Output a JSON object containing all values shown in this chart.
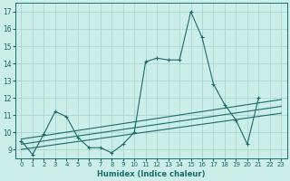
{
  "xlabel": "Humidex (Indice chaleur)",
  "xlim": [
    -0.5,
    23.5
  ],
  "ylim": [
    8.5,
    17.5
  ],
  "yticks": [
    9,
    10,
    11,
    12,
    13,
    14,
    15,
    16,
    17
  ],
  "xticks": [
    0,
    1,
    2,
    3,
    4,
    5,
    6,
    7,
    8,
    9,
    10,
    11,
    12,
    13,
    14,
    15,
    16,
    17,
    18,
    19,
    20,
    21,
    22,
    23
  ],
  "bg_color": "#cceee8",
  "grid_color": "#aad8d2",
  "line_color": "#1a6b6b",
  "main_x": [
    0,
    1,
    2,
    3,
    4,
    5,
    6,
    7,
    8,
    9,
    10,
    11,
    12,
    13,
    14,
    15,
    16,
    17,
    18,
    19,
    20,
    21
  ],
  "main_y": [
    9.5,
    8.7,
    9.9,
    11.2,
    10.9,
    9.7,
    9.1,
    9.1,
    8.8,
    9.3,
    10.0,
    14.1,
    14.3,
    14.2,
    14.2,
    17.0,
    15.5,
    12.8,
    11.6,
    10.7,
    9.3,
    12.0
  ],
  "smooth_lines": [
    {
      "x": [
        0,
        23
      ],
      "y": [
        9.6,
        11.9
      ]
    },
    {
      "x": [
        0,
        23
      ],
      "y": [
        9.3,
        11.5
      ]
    },
    {
      "x": [
        0,
        23
      ],
      "y": [
        9.0,
        11.1
      ]
    }
  ]
}
